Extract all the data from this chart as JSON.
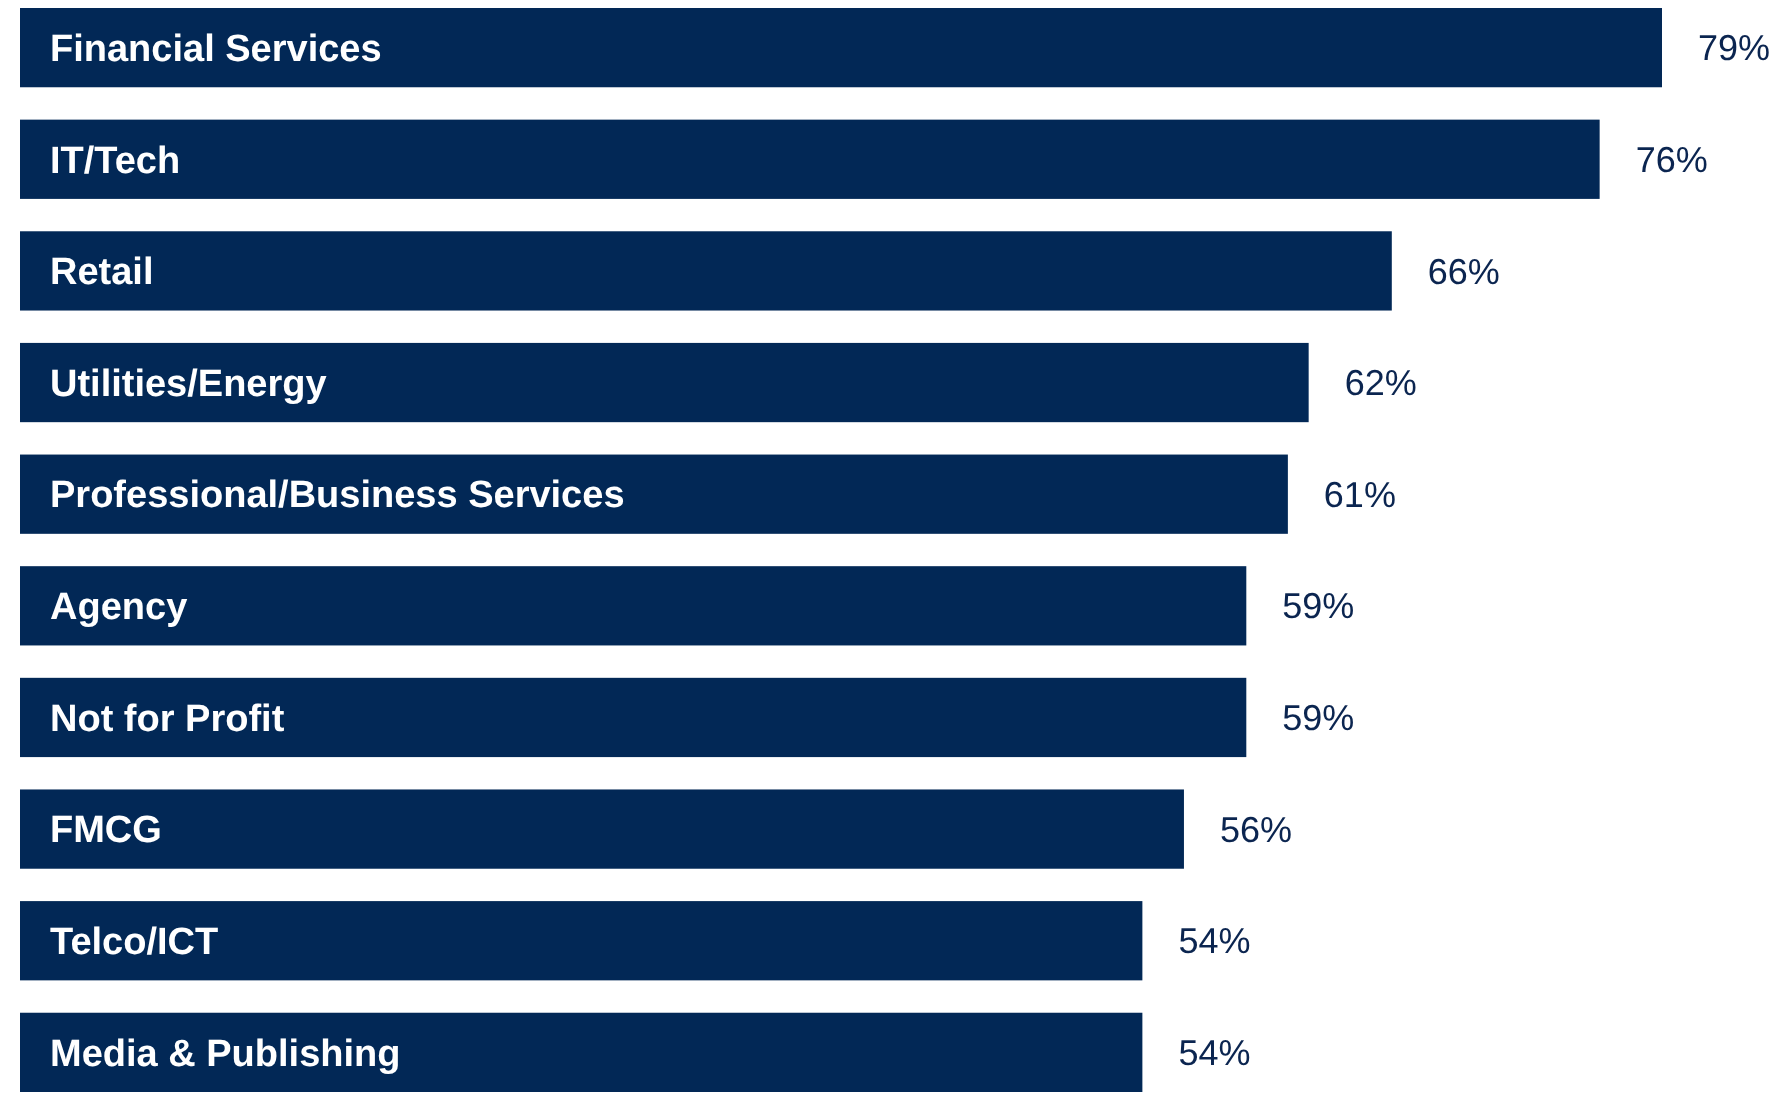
{
  "chart_data": {
    "type": "bar",
    "orientation": "horizontal",
    "categories": [
      "Financial Services",
      "IT/Tech",
      "Retail",
      "Utilities/Energy",
      "Professional/Business Services",
      "Agency",
      "Not for Profit",
      "FMCG",
      "Telco/ICT",
      "Media & Publishing"
    ],
    "values": [
      79,
      76,
      66,
      62,
      61,
      59,
      59,
      56,
      54,
      54
    ],
    "value_labels": [
      "79%",
      "76%",
      "66%",
      "62%",
      "61%",
      "59%",
      "59%",
      "56%",
      "54%",
      "54%"
    ],
    "color": "#022856"
  }
}
